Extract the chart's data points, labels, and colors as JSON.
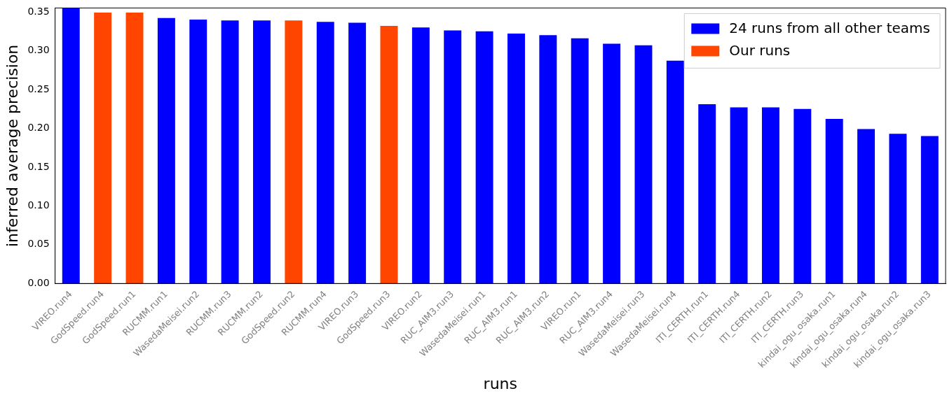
{
  "chart_data": {
    "type": "bar",
    "xlabel": "runs",
    "ylabel": "inferred average precision",
    "categories": [
      "VIREO.run4",
      "GodSpeed.run4",
      "GodSpeed.run1",
      "RUCMM.run1",
      "WasedaMeisei.run2",
      "RUCMM.run3",
      "RUCMM.run2",
      "GodSpeed.run2",
      "RUCMM.run4",
      "VIREO.run3",
      "GodSpeed.run3",
      "VIREO.run2",
      "RUC_AIM3.run3",
      "WasedaMeisei.run1",
      "RUC_AIM3.run1",
      "RUC_AIM3.run2",
      "VIREO.run1",
      "RUC_AIM3.run4",
      "WasedaMeisei.run3",
      "WasedaMeisei.run4",
      "ITI_CERTH.run1",
      "ITI_CERTH.run4",
      "ITI_CERTH.run2",
      "ITI_CERTH.run3",
      "kindai_ogu_osaka.run1",
      "kindai_ogu_osaka.run4",
      "kindai_ogu_osaka.run2",
      "kindai_ogu_osaka.run3"
    ],
    "series": [
      {
        "name": "24 runs from all other teams",
        "color": "#0000ff",
        "values": [
          0.355,
          null,
          null,
          0.342,
          0.34,
          0.339,
          0.339,
          null,
          0.337,
          0.336,
          null,
          0.33,
          0.326,
          0.325,
          0.322,
          0.32,
          0.316,
          0.309,
          0.307,
          0.287,
          0.231,
          0.227,
          0.227,
          0.225,
          0.212,
          0.199,
          0.193,
          0.19
        ]
      },
      {
        "name": "Our runs",
        "color": "#ff4500",
        "values": [
          null,
          0.349,
          0.349,
          null,
          null,
          null,
          null,
          0.339,
          null,
          null,
          0.332,
          null,
          null,
          null,
          null,
          null,
          null,
          null,
          null,
          null,
          null,
          null,
          null,
          null,
          null,
          null,
          null,
          null
        ]
      }
    ],
    "ylim": [
      0,
      0.355
    ],
    "yticks": [
      {
        "value": 0,
        "label": "0.00"
      },
      0.05,
      {
        "value": 0.1,
        "label": "0.10"
      },
      0.15,
      {
        "value": 0.2,
        "label": "0.20"
      },
      0.25,
      {
        "value": 0.3,
        "label": "0.30"
      },
      0.35
    ],
    "grid": false,
    "legend": "top right"
  }
}
